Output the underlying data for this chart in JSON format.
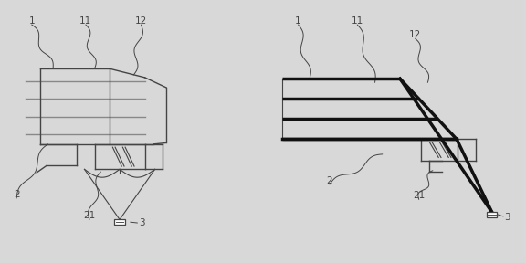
{
  "bg_color": "#d8d8d8",
  "line_color": "#444444",
  "thick_line_color": "#111111",
  "label_color": "#444444",
  "fig_width": 5.76,
  "fig_height": 2.88,
  "dpi": 100
}
